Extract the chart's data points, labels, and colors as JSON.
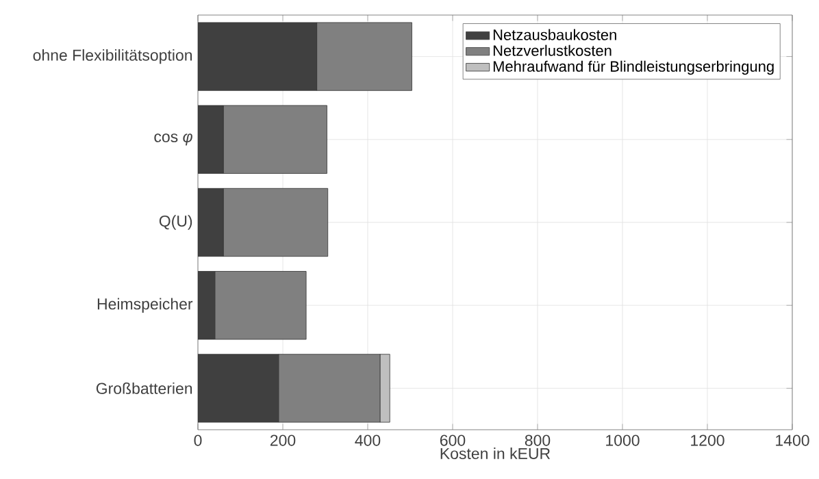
{
  "chart_data": {
    "type": "bar",
    "orientation": "horizontal",
    "stacked": true,
    "xlabel": "Kosten in kEUR",
    "categories": [
      "ohne Flexibilitätsoption",
      "cos *φ*",
      "Q(U)",
      "Heimspeicher",
      "Großbatterien"
    ],
    "series": [
      {
        "name": "Netzausbaukosten",
        "color": "#404040",
        "values": [
          280,
          60,
          60,
          40,
          190
        ]
      },
      {
        "name": "Netzverlustkosten",
        "color": "#808080",
        "values": [
          224,
          244,
          246,
          215,
          239
        ]
      },
      {
        "name": "Mehraufwand für Blindleistungserbringung",
        "color": "#bfbfbf",
        "values": [
          0,
          0,
          0,
          0,
          23
        ]
      }
    ],
    "xlim": [
      0,
      1400
    ],
    "xticks": [
      0,
      200,
      400,
      600,
      800,
      1000,
      1200,
      1400
    ],
    "grid": true,
    "legend": "top right"
  }
}
